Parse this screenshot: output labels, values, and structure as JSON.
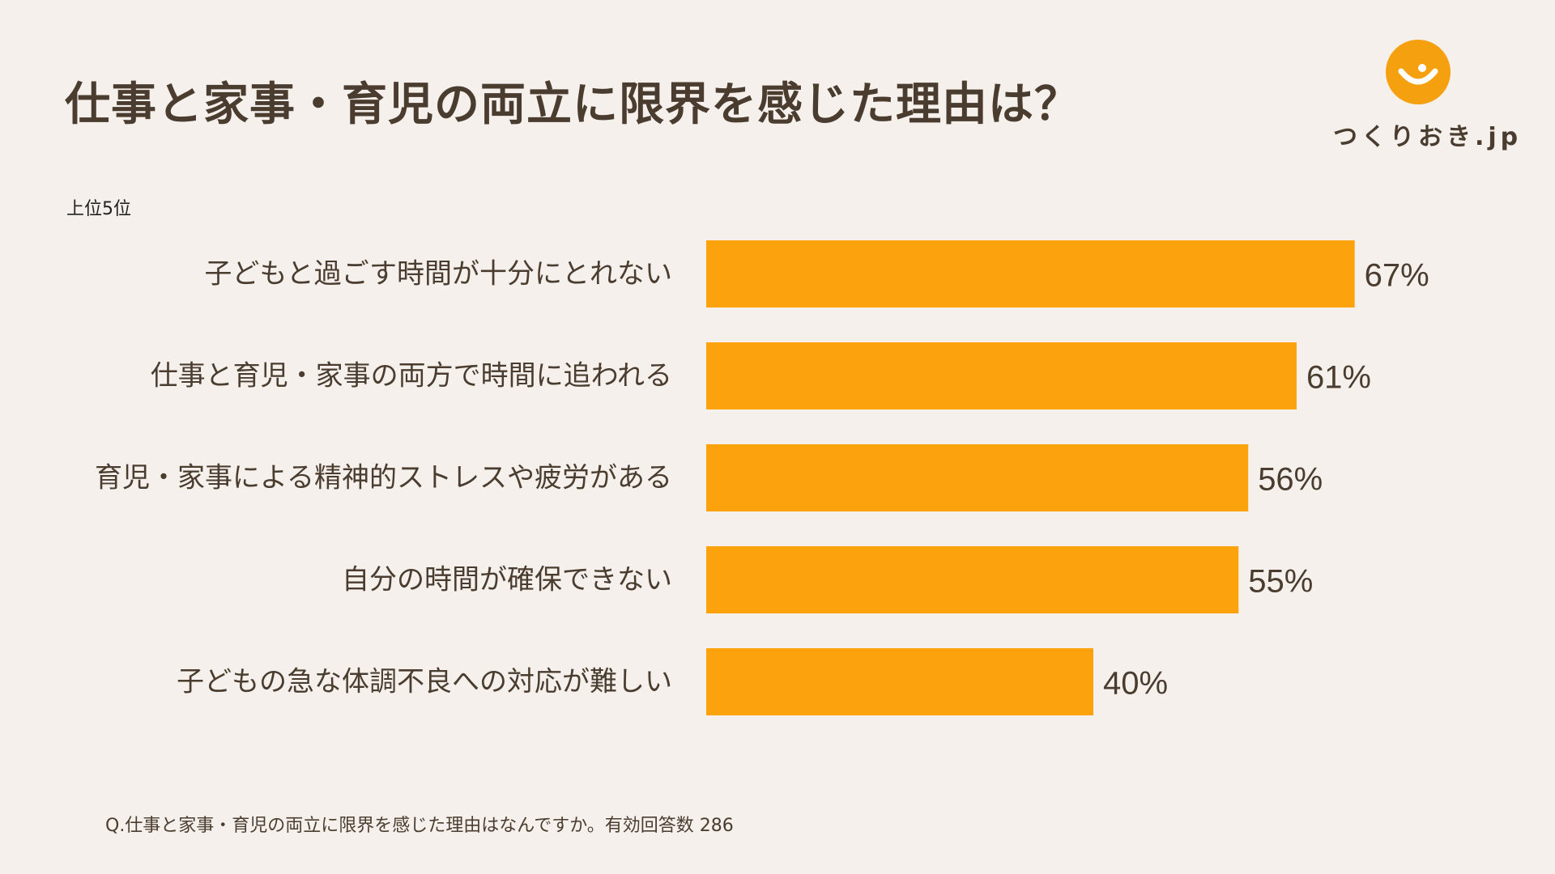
{
  "title": "仕事と家事・育児の両立に限界を感じた理由は？",
  "subtitle": "上位5位",
  "logo": {
    "text": "つくりおき.jp",
    "icon": "smile-circle-icon",
    "color": "#f5a00f"
  },
  "footnote": "Q.仕事と家事・育児の両立に限界を感じた理由はなんですか。有効回答数 286",
  "colors": {
    "bar": "#fca20c",
    "text": "#4a3d30",
    "background": "#f5f0eb"
  },
  "chart_data": {
    "type": "bar",
    "orientation": "horizontal",
    "categories": [
      "子どもと過ごす時間が十分にとれない",
      "仕事と育児・家事の両方で時間に追われる",
      "育児・家事による精神的ストレスや疲労がある",
      "自分の時間が確保できない",
      "子どもの急な体調不良への対応が難しい"
    ],
    "values": [
      67,
      61,
      56,
      55,
      40
    ],
    "value_labels": [
      "67%",
      "61%",
      "56%",
      "55%",
      "40%"
    ],
    "unit": "%",
    "xlim": [
      0,
      100
    ],
    "grid": false,
    "legend": "none"
  }
}
